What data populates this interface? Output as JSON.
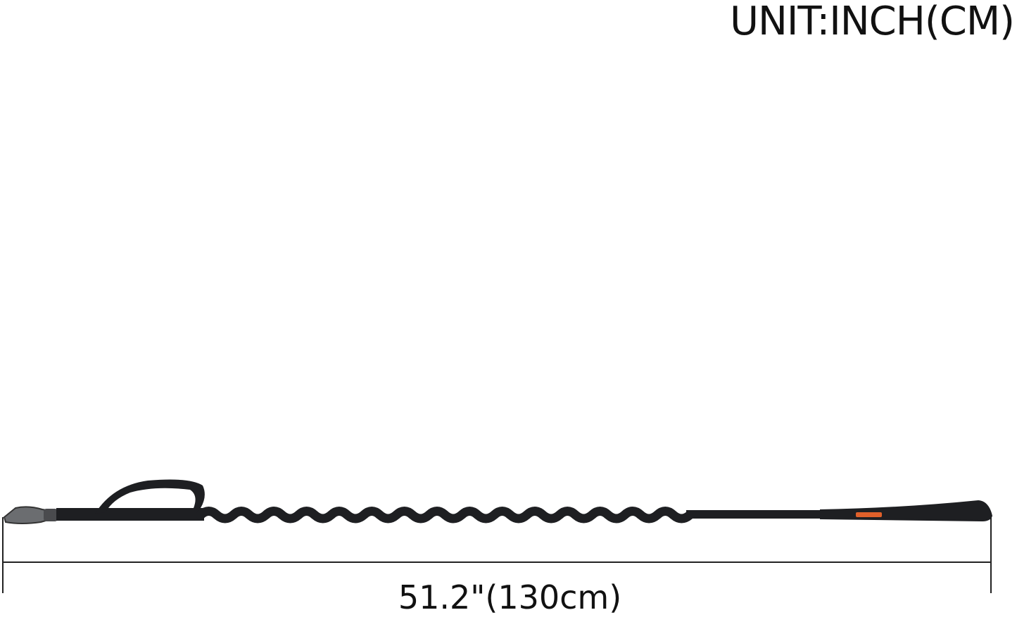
{
  "unit_label": "UNIT:INCH(CM)",
  "dimension_label": "51.2\"(130cm)",
  "product": {
    "icon": "bungee-dog-leash",
    "color": "#1e1f22",
    "label_color": "#e0602a"
  },
  "measurement": {
    "inches": 51.2,
    "cm": 130
  }
}
